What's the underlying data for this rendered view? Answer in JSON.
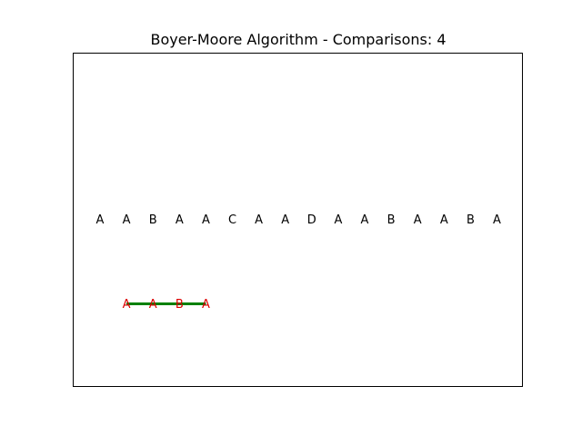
{
  "window": {
    "title": "Boyer-Moore Algorithm - Comparisons: 4"
  },
  "text_sequence": [
    "A",
    "A",
    "B",
    "A",
    "A",
    "C",
    "A",
    "A",
    "D",
    "A",
    "A",
    "B",
    "A",
    "A",
    "B",
    "A"
  ],
  "pattern": {
    "characters": [
      "A",
      "A",
      "B",
      "A"
    ],
    "offset": 1
  },
  "colors": {
    "text": "#000000",
    "pattern": "#dd0000",
    "match_line": "#008000",
    "frame": "#000000",
    "background": "#ffffff"
  }
}
